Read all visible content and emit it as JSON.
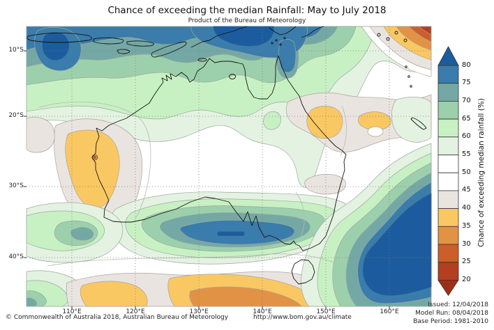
{
  "title": "Chance of exceeding the median Rainfall: May to July 2018",
  "subtitle": "Product of the Bureau of Meteorology",
  "axes": {
    "lon_ticks": [
      "110°E",
      "120°E",
      "130°E",
      "140°E",
      "150°E",
      "160°E"
    ],
    "lat_ticks": [
      "10°S",
      "20°S",
      "30°S",
      "40°S"
    ]
  },
  "legend": {
    "title": "Chance of exceeding median rainfall (%)",
    "tick_labels": [
      "80",
      "75",
      "70",
      "65",
      "60",
      "55",
      "50",
      "45",
      "40",
      "35",
      "30",
      "25",
      "20"
    ],
    "band_colors_top_to_bottom": [
      "#3a7cab",
      "#74a8a5",
      "#9cd0ac",
      "#c8f1c3",
      "#e4f2e1",
      "#ffffff",
      "#ffffff",
      "#e9e4df",
      "#fac862",
      "#e29245",
      "#cb5f2a",
      "#b23f1f"
    ],
    "arrow_top_color": "#1c5c9e",
    "arrow_bottom_color": "#9e2f16"
  },
  "footer": {
    "copyright": "© Commonwealth of Australia 2018, Australian Bureau of Meteorology",
    "url": "http://www.bom.gov.au/climate",
    "issued": "Issued: 12/04/2018",
    "model_run": "Model Run: 08/04/2018",
    "base_period": "Base Period: 1981-2010"
  }
}
